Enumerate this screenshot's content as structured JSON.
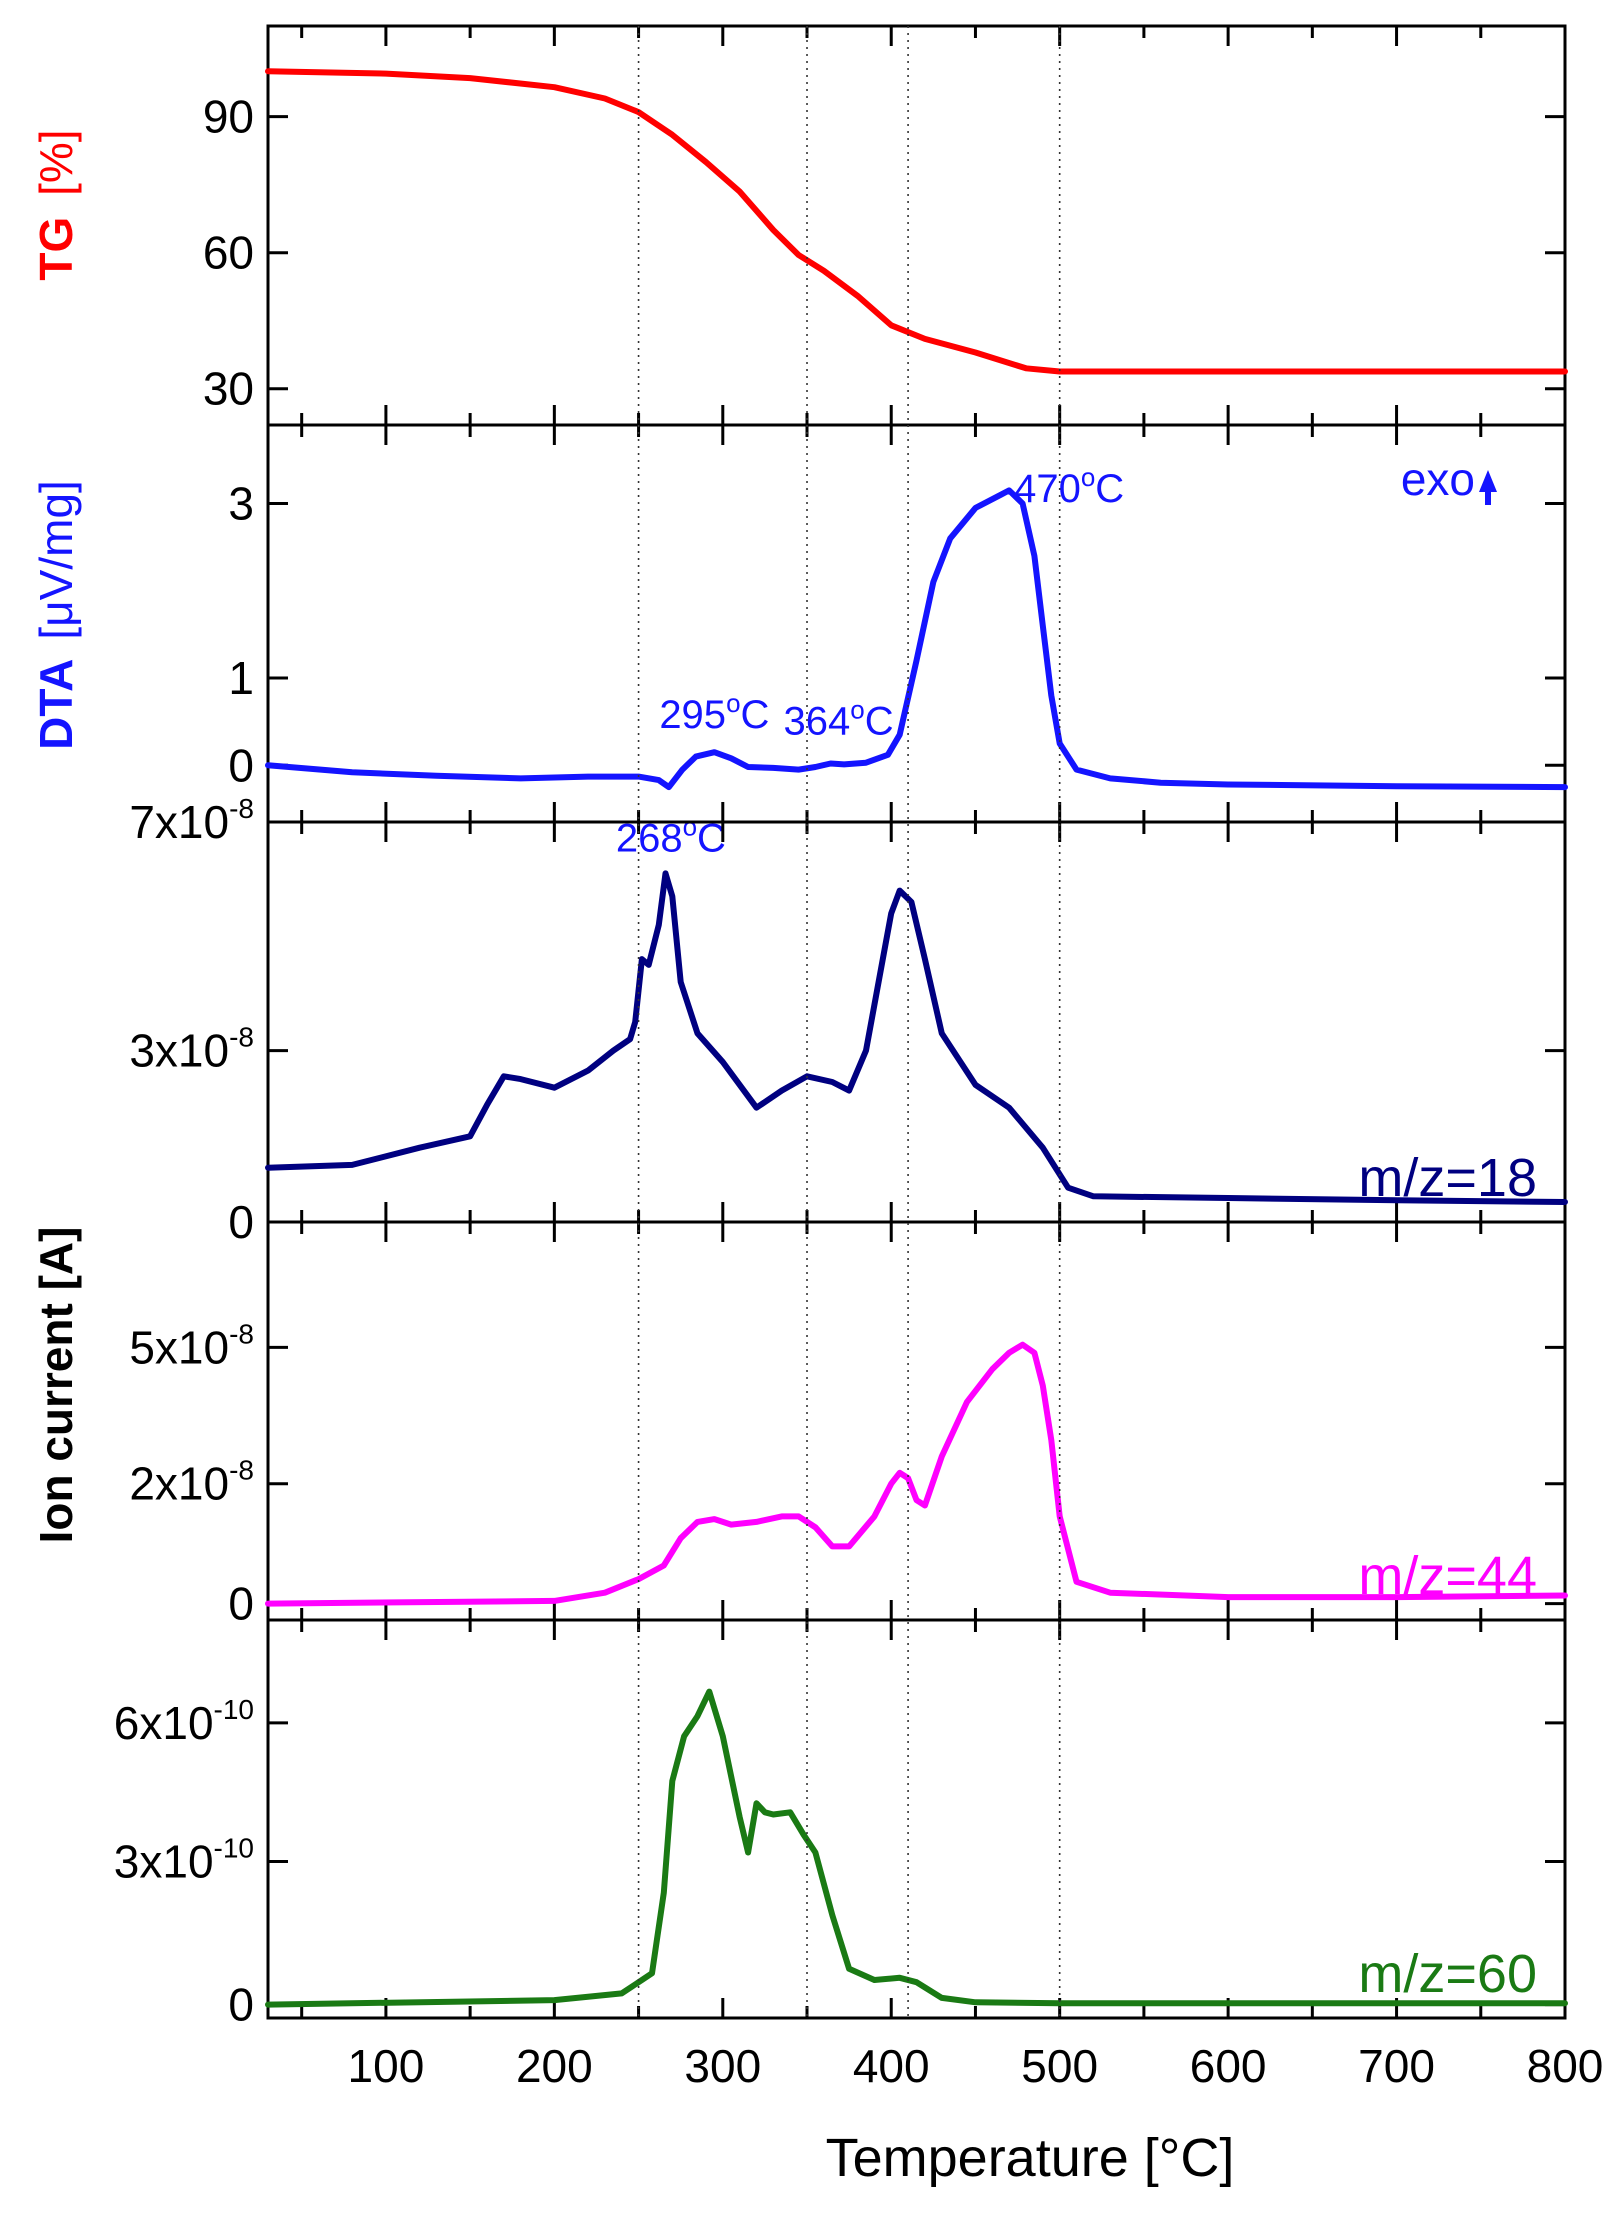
{
  "chart_data": {
    "type": "line",
    "layout": "stacked-panels",
    "shared_x": {
      "label": "Temperature [°C]",
      "range": [
        30,
        800
      ],
      "ticks": [
        100,
        200,
        300,
        400,
        500,
        600,
        700,
        800
      ]
    },
    "guide_lines_x": [
      250,
      350,
      410,
      500
    ],
    "ion_current_label": "Ion current [A]",
    "panels": [
      {
        "key": "tg",
        "ylabel_name": "TG",
        "ylabel_unit": "[%]",
        "color": "#ff0000",
        "ylim": [
          22,
          110
        ],
        "yticks": [
          {
            "v": 30,
            "base": "30",
            "exp": ""
          },
          {
            "v": 60,
            "base": "60",
            "exp": ""
          },
          {
            "v": 90,
            "base": "90",
            "exp": ""
          }
        ],
        "x": [
          30,
          100,
          150,
          200,
          230,
          250,
          270,
          290,
          310,
          330,
          345,
          360,
          380,
          400,
          420,
          450,
          480,
          500,
          600,
          800
        ],
        "y": [
          100,
          99.5,
          98.5,
          96.5,
          94,
          91,
          86,
          80,
          73.5,
          65,
          59.5,
          56,
          50.5,
          44,
          41,
          38,
          34.5,
          33.8,
          33.8,
          33.8
        ]
      },
      {
        "key": "dta",
        "ylabel_name": "DTA",
        "ylabel_unit": "[μV/mg]",
        "color": "#1414ff",
        "ylim": [
          -0.65,
          3.9
        ],
        "yticks": [
          {
            "v": 0,
            "base": "0",
            "exp": ""
          },
          {
            "v": 1,
            "base": "1",
            "exp": ""
          },
          {
            "v": 3,
            "base": "3",
            "exp": ""
          }
        ],
        "x": [
          30,
          80,
          130,
          180,
          220,
          250,
          262,
          268,
          276,
          284,
          295,
          305,
          315,
          330,
          345,
          355,
          364,
          372,
          385,
          398,
          405,
          415,
          425,
          435,
          450,
          465,
          470,
          478,
          485,
          490,
          495,
          500,
          510,
          530,
          560,
          600,
          700,
          800
        ],
        "y": [
          0.0,
          -0.08,
          -0.12,
          -0.15,
          -0.13,
          -0.13,
          -0.17,
          -0.25,
          -0.05,
          0.1,
          0.15,
          0.08,
          -0.02,
          -0.03,
          -0.05,
          -0.02,
          0.02,
          0.01,
          0.03,
          0.12,
          0.35,
          1.2,
          2.1,
          2.6,
          2.95,
          3.1,
          3.15,
          3.0,
          2.4,
          1.6,
          0.8,
          0.25,
          -0.05,
          -0.15,
          -0.2,
          -0.22,
          -0.24,
          -0.25
        ],
        "annotations": [
          {
            "x": 268,
            "y": -0.28,
            "label": "268",
            "unit": "C"
          },
          {
            "x": 295,
            "y": 0.22,
            "label": "295",
            "unit": "C"
          },
          {
            "x": 364,
            "y": 0.1,
            "label": "364",
            "unit": "C"
          },
          {
            "x": 470,
            "y": 3.2,
            "label": "470",
            "unit": "C"
          }
        ],
        "exo_label": "exo"
      },
      {
        "key": "ms18",
        "label": "m/z=18",
        "color": "#000080",
        "ylim": [
          0,
          7
        ],
        "yticks": [
          {
            "v": 0,
            "base": "0",
            "exp": ""
          },
          {
            "v": 3,
            "base": "3x10",
            "exp": "-8"
          },
          {
            "v": 7,
            "base": "7x10",
            "exp": "-8"
          }
        ],
        "x": [
          30,
          80,
          120,
          150,
          160,
          170,
          180,
          200,
          220,
          235,
          245,
          248,
          252,
          256,
          262,
          266,
          270,
          275,
          285,
          300,
          320,
          335,
          350,
          365,
          375,
          385,
          395,
          400,
          405,
          412,
          420,
          430,
          450,
          470,
          490,
          505,
          520,
          600,
          700,
          800
        ],
        "y": [
          0.95,
          1.0,
          1.3,
          1.5,
          2.05,
          2.55,
          2.5,
          2.35,
          2.65,
          3.0,
          3.2,
          3.5,
          4.6,
          4.5,
          5.2,
          6.1,
          5.7,
          4.2,
          3.3,
          2.8,
          2.0,
          2.3,
          2.55,
          2.45,
          2.3,
          3.0,
          4.6,
          5.4,
          5.8,
          5.6,
          4.6,
          3.3,
          2.4,
          2.0,
          1.3,
          0.6,
          0.45,
          0.42,
          0.38,
          0.35
        ]
      },
      {
        "key": "ms44",
        "label": "m/z=44",
        "color": "#ff00ff",
        "ylim": [
          -0.3,
          7.0
        ],
        "yticks": [
          {
            "v": 0,
            "base": "0",
            "exp": ""
          },
          {
            "v": 2.2,
            "base": "2x10",
            "exp": "-8"
          },
          {
            "v": 4.7,
            "base": "5x10",
            "exp": "-8"
          }
        ],
        "x": [
          30,
          200,
          230,
          250,
          265,
          275,
          285,
          295,
          305,
          320,
          335,
          345,
          355,
          365,
          375,
          390,
          400,
          405,
          410,
          415,
          420,
          430,
          445,
          460,
          470,
          478,
          485,
          490,
          495,
          500,
          510,
          530,
          600,
          700,
          800
        ],
        "y": [
          0,
          0.05,
          0.2,
          0.45,
          0.7,
          1.2,
          1.5,
          1.55,
          1.45,
          1.5,
          1.6,
          1.6,
          1.4,
          1.05,
          1.05,
          1.6,
          2.2,
          2.4,
          2.3,
          1.9,
          1.8,
          2.7,
          3.7,
          4.3,
          4.6,
          4.75,
          4.6,
          4.0,
          3.0,
          1.6,
          0.4,
          0.2,
          0.12,
          0.12,
          0.15
        ]
      },
      {
        "key": "ms60",
        "label": "m/z=60",
        "color": "#1a7a14",
        "ylim": [
          -0.3,
          8.6
        ],
        "yticks": [
          {
            "v": 0,
            "base": "0",
            "exp": ""
          },
          {
            "v": 3.2,
            "base": "3x10",
            "exp": "-10"
          },
          {
            "v": 6.3,
            "base": "6x10",
            "exp": "-10"
          }
        ],
        "x": [
          30,
          200,
          240,
          252,
          258,
          265,
          270,
          277,
          285,
          292,
          300,
          310,
          315,
          320,
          325,
          330,
          340,
          348,
          355,
          365,
          375,
          390,
          405,
          415,
          430,
          450,
          500,
          800
        ],
        "y": [
          0,
          0.1,
          0.25,
          0.55,
          0.7,
          2.5,
          5.0,
          6.0,
          6.45,
          7.0,
          6.0,
          4.2,
          3.4,
          4.5,
          4.3,
          4.25,
          4.3,
          3.8,
          3.4,
          2.0,
          0.8,
          0.55,
          0.6,
          0.5,
          0.15,
          0.05,
          0.03,
          0.03
        ]
      }
    ]
  }
}
